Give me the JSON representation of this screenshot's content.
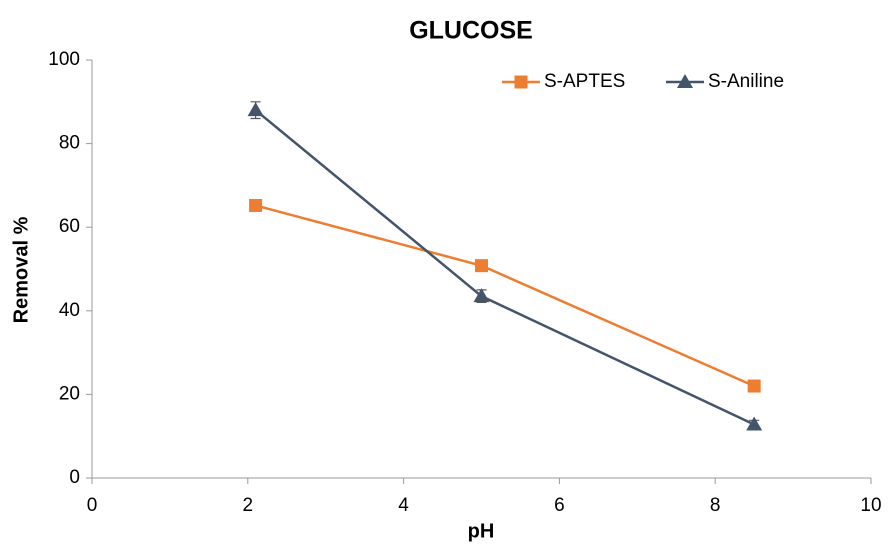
{
  "chart_data": {
    "type": "line",
    "title": "GLUCOSE",
    "x_label": "pH",
    "y_label": "Removal %",
    "x": [
      2.1,
      5,
      8.5
    ],
    "series": [
      {
        "name": "S-APTES",
        "color": "#ED7D31",
        "marker": "square",
        "values": [
          65.2,
          50.8,
          22
        ]
      },
      {
        "name": "S-Aniline",
        "color": "#44546A",
        "marker": "triangle",
        "values": [
          88,
          43.5,
          12.8
        ],
        "errors": [
          2,
          1.5,
          1
        ]
      }
    ],
    "xlim": [
      0,
      10
    ],
    "xticks": [
      0,
      2,
      4,
      6,
      8,
      10
    ],
    "ylim": [
      0,
      100
    ],
    "yticks": [
      0,
      20,
      40,
      60,
      80,
      100
    ],
    "grid": false,
    "legend": "top-right"
  }
}
